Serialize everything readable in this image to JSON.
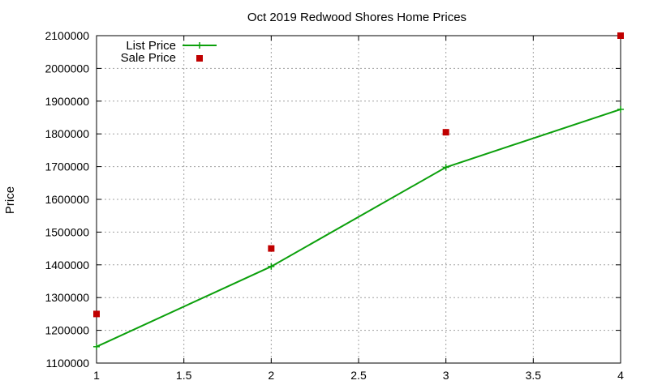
{
  "chart_data": {
    "type": "line",
    "title": "Oct 2019 Redwood Shores Home Prices",
    "xlabel": "",
    "ylabel": "Price",
    "xlim": [
      1,
      4
    ],
    "ylim": [
      1100000,
      2100000
    ],
    "x_ticks": [
      "1",
      "1.5",
      "2",
      "2.5",
      "3",
      "3.5",
      "4"
    ],
    "x_tick_values": [
      1,
      1.5,
      2,
      2.5,
      3,
      3.5,
      4
    ],
    "y_ticks": [
      "1100000",
      "1200000",
      "1300000",
      "1400000",
      "1500000",
      "1600000",
      "1700000",
      "1800000",
      "1900000",
      "2000000",
      "2100000"
    ],
    "y_tick_values": [
      1100000,
      1200000,
      1300000,
      1400000,
      1500000,
      1600000,
      1700000,
      1800000,
      1900000,
      2000000,
      2100000
    ],
    "grid": true,
    "legend_position": "top-left",
    "series": [
      {
        "name": "List Price",
        "style": "linespoints",
        "marker": "plus",
        "color": "#0ca00c",
        "x": [
          1,
          2,
          3,
          4
        ],
        "y": [
          1150000,
          1395000,
          1698000,
          1875000
        ]
      },
      {
        "name": "Sale Price",
        "style": "points",
        "marker": "square",
        "color": "#c00000",
        "x": [
          1,
          2,
          3,
          4
        ],
        "y": [
          1250000,
          1450000,
          1805000,
          2100000
        ]
      }
    ]
  }
}
